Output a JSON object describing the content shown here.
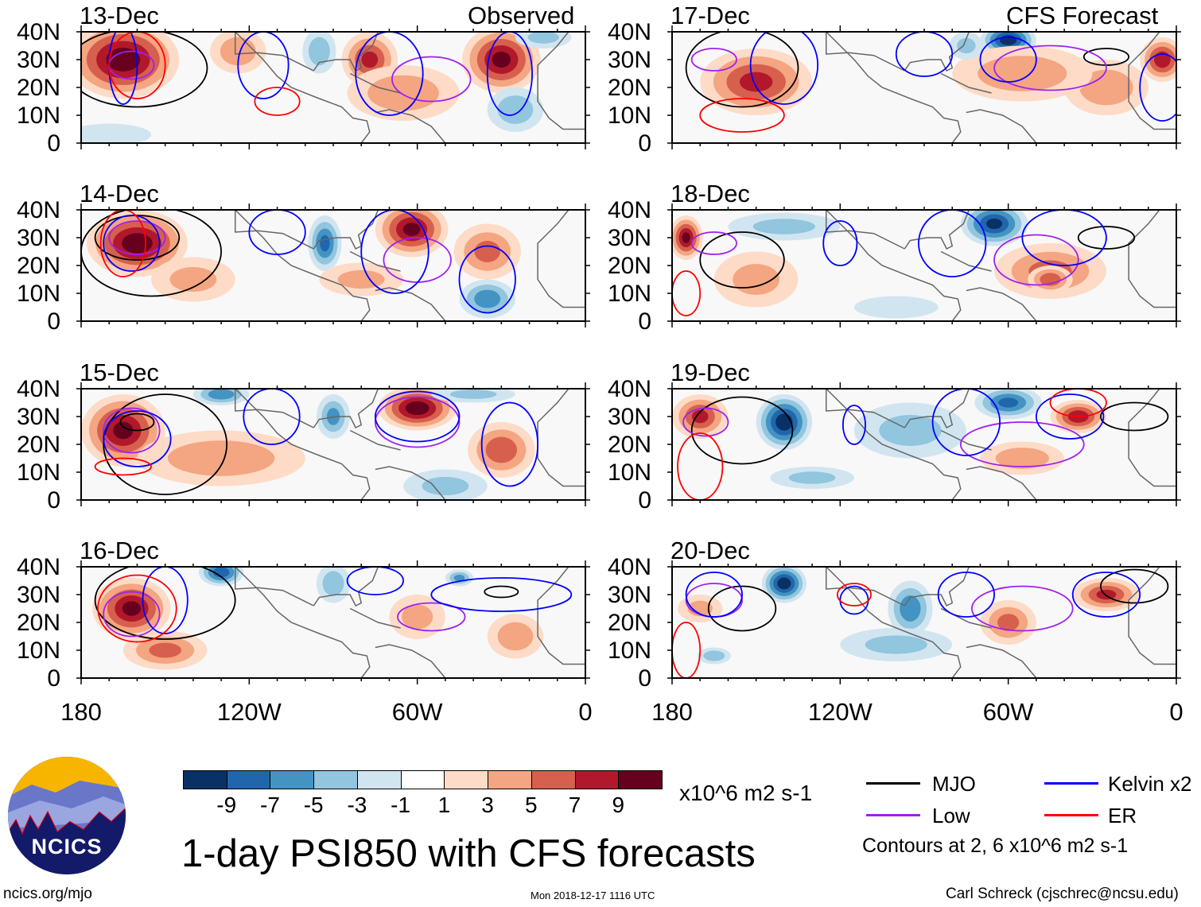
{
  "title": "1-day PSI850 with CFS forecasts",
  "units": "x10^6 m2 s-1",
  "footer": {
    "left": "ncics.org/mjo",
    "center": "Mon 2018-12-17 1116 UTC",
    "right": "Carl Schreck (cjschrec@ncsu.edu)"
  },
  "logo_text": "NCICS",
  "columns": [
    {
      "label": "Observed"
    },
    {
      "label": "CFS Forecast"
    }
  ],
  "lat_labels": [
    "40N",
    "30N",
    "20N",
    "10N",
    "0"
  ],
  "lon_labels": [
    "180",
    "120W",
    "60W",
    "0"
  ],
  "colorbar": {
    "labels": [
      "-9",
      "-7",
      "-5",
      "-3",
      "-1",
      "1",
      "3",
      "5",
      "7",
      "9"
    ],
    "colors": [
      "#0a3166",
      "#2166ac",
      "#4393c3",
      "#92c5de",
      "#d1e5f0",
      "#ffffff",
      "#fddbc7",
      "#f4a582",
      "#d6604d",
      "#b2182b",
      "#67001f"
    ]
  },
  "legend": {
    "items": [
      {
        "label": "MJO",
        "color": "#000000"
      },
      {
        "label": "Kelvin x2",
        "color": "#0000ff"
      },
      {
        "label": "Low",
        "color": "#a020f0"
      },
      {
        "label": "ER",
        "color": "#ff0000"
      }
    ],
    "note": "Contours at 2, 6 x10^6 m2 s-1"
  },
  "chart_data": {
    "type": "heatmap",
    "description_units": "streamfunction anomaly x10^6 m2 s-1",
    "xlim_lon_west": [
      180,
      0
    ],
    "ylim_lat": [
      0,
      40
    ],
    "panels": [
      {
        "date": "13-Dec",
        "col": 0,
        "row": 0,
        "anoms": [
          [
            10,
            165,
            30,
            20,
            14
          ],
          [
            4,
            124,
            33,
            10,
            8
          ],
          [
            -4,
            95,
            33,
            6,
            8
          ],
          [
            7,
            77,
            30,
            10,
            10
          ],
          [
            4,
            65,
            18,
            20,
            10
          ],
          [
            9,
            30,
            30,
            14,
            12
          ],
          [
            -4,
            25,
            12,
            10,
            8
          ],
          [
            -3,
            15,
            38,
            10,
            4
          ],
          [
            -2,
            170,
            3,
            15,
            4
          ]
        ],
        "contours": {
          "mjo": [
            [
              160,
              27,
              25,
              14
            ]
          ],
          "low": [
            [
              162,
              28,
              8,
              5
            ],
            [
              55,
              23,
              14,
              8
            ]
          ],
          "kelvin": [
            [
              165,
              28,
              5,
              14
            ],
            [
              115,
              28,
              9,
              12
            ],
            [
              70,
              25,
              12,
              15
            ],
            [
              27,
              25,
              8,
              15
            ]
          ],
          "er": [
            [
              160,
              28,
              10,
              12
            ],
            [
              110,
              15,
              8,
              5
            ]
          ]
        }
      },
      {
        "date": "14-Dec",
        "col": 0,
        "row": 1,
        "anoms": [
          [
            10,
            160,
            28,
            18,
            12
          ],
          [
            3,
            140,
            15,
            15,
            8
          ],
          [
            9,
            62,
            33,
            13,
            10
          ],
          [
            5,
            35,
            25,
            12,
            10
          ],
          [
            -7,
            93,
            28,
            6,
            10
          ],
          [
            -6,
            35,
            8,
            10,
            7
          ],
          [
            3,
            80,
            15,
            15,
            6
          ]
        ],
        "contours": {
          "mjo": [
            [
              160,
              30,
              15,
              8
            ],
            [
              155,
              25,
              25,
              16
            ]
          ],
          "low": [
            [
              160,
              30,
              10,
              6
            ],
            [
              60,
              22,
              12,
              8
            ]
          ],
          "kelvin": [
            [
              162,
              28,
              10,
              10
            ],
            [
              110,
              32,
              10,
              8
            ],
            [
              68,
              25,
              12,
              15
            ],
            [
              35,
              15,
              10,
              12
            ]
          ],
          "er": [
            [
              165,
              28,
              8,
              12
            ]
          ]
        }
      },
      {
        "date": "15-Dec",
        "col": 0,
        "row": 2,
        "anoms": [
          [
            9,
            165,
            25,
            15,
            13
          ],
          [
            10,
            60,
            33,
            14,
            8
          ],
          [
            -6,
            130,
            38,
            10,
            4
          ],
          [
            -5,
            90,
            30,
            6,
            8
          ],
          [
            6,
            30,
            18,
            12,
            10
          ],
          [
            4,
            130,
            15,
            30,
            10
          ],
          [
            -3,
            50,
            5,
            15,
            6
          ],
          [
            -3,
            40,
            38,
            15,
            3
          ]
        ],
        "contours": {
          "mjo": [
            [
              160,
              28,
              6,
              3
            ],
            [
              150,
              20,
              22,
              18
            ]
          ],
          "low": [
            [
              162,
              25,
              10,
              8
            ],
            [
              60,
              28,
              15,
              9
            ]
          ],
          "kelvin": [
            [
              160,
              22,
              12,
              10
            ],
            [
              112,
              30,
              10,
              10
            ],
            [
              60,
              30,
              15,
              9
            ],
            [
              27,
              20,
              10,
              15
            ]
          ],
          "er": [
            [
              165,
              12,
              10,
              3
            ]
          ]
        }
      },
      {
        "date": "16-Dec",
        "col": 0,
        "row": 3,
        "anoms": [
          [
            9,
            162,
            25,
            14,
            11
          ],
          [
            5,
            150,
            10,
            15,
            7
          ],
          [
            -8,
            130,
            38,
            8,
            5
          ],
          [
            -4,
            90,
            34,
            6,
            7
          ],
          [
            3,
            60,
            22,
            10,
            8
          ],
          [
            4,
            25,
            15,
            10,
            8
          ],
          [
            -5,
            45,
            36,
            5,
            3
          ]
        ],
        "contours": {
          "mjo": [
            [
              150,
              28,
              25,
              14
            ],
            [
              30,
              31,
              6,
              2
            ]
          ],
          "low": [
            [
              162,
              23,
              10,
              8
            ],
            [
              55,
              22,
              12,
              5
            ]
          ],
          "kelvin": [
            [
              150,
              28,
              8,
              12
            ],
            [
              75,
              35,
              10,
              5
            ],
            [
              30,
              30,
              25,
              6
            ]
          ],
          "er": [
            [
              160,
              25,
              14,
              12
            ]
          ]
        }
      },
      {
        "date": "17-Dec",
        "col": 1,
        "row": 0,
        "anoms": [
          [
            7,
            150,
            22,
            20,
            12
          ],
          [
            -10,
            60,
            37,
            10,
            6
          ],
          [
            4,
            25,
            20,
            15,
            10
          ],
          [
            4,
            55,
            25,
            25,
            10
          ],
          [
            8,
            5,
            30,
            8,
            8
          ],
          [
            -3,
            75,
            35,
            6,
            5
          ]
        ],
        "contours": {
          "mjo": [
            [
              155,
              27,
              20,
              14
            ],
            [
              25,
              31,
              8,
              3
            ]
          ],
          "low": [
            [
              165,
              30,
              8,
              4
            ],
            [
              45,
              27,
              20,
              8
            ]
          ],
          "kelvin": [
            [
              140,
              28,
              12,
              14
            ],
            [
              90,
              32,
              10,
              8
            ],
            [
              60,
              30,
              10,
              8
            ],
            [
              5,
              20,
              8,
              12
            ]
          ],
          "er": [
            [
              155,
              10,
              15,
              6
            ]
          ]
        }
      },
      {
        "date": "18-Dec",
        "col": 1,
        "row": 1,
        "anoms": [
          [
            9,
            175,
            30,
            6,
            8
          ],
          [
            -9,
            65,
            35,
            12,
            8
          ],
          [
            -3,
            140,
            34,
            20,
            5
          ],
          [
            5,
            45,
            18,
            20,
            10
          ],
          [
            6,
            45,
            15,
            8,
            5
          ],
          [
            3,
            150,
            15,
            15,
            10
          ],
          [
            -2,
            100,
            5,
            15,
            4
          ]
        ],
        "contours": {
          "mjo": [
            [
              155,
              22,
              15,
              10
            ],
            [
              25,
              30,
              10,
              4
            ]
          ],
          "low": [
            [
              165,
              28,
              8,
              4
            ],
            [
              50,
              22,
              15,
              9
            ]
          ],
          "kelvin": [
            [
              120,
              28,
              6,
              8
            ],
            [
              80,
              28,
              12,
              12
            ],
            [
              40,
              30,
              15,
              10
            ]
          ],
          "er": [
            [
              175,
              10,
              5,
              8
            ]
          ]
        }
      },
      {
        "date": "19-Dec",
        "col": 1,
        "row": 2,
        "anoms": [
          [
            7,
            170,
            30,
            10,
            8
          ],
          [
            -10,
            140,
            28,
            10,
            10
          ],
          [
            -7,
            60,
            35,
            12,
            6
          ],
          [
            8,
            35,
            30,
            10,
            6
          ],
          [
            4,
            55,
            15,
            15,
            6
          ],
          [
            -3,
            95,
            25,
            20,
            10
          ],
          [
            -3,
            130,
            8,
            15,
            4
          ]
        ],
        "contours": {
          "mjo": [
            [
              155,
              25,
              18,
              12
            ],
            [
              15,
              30,
              12,
              5
            ]
          ],
          "low": [
            [
              168,
              28,
              8,
              5
            ],
            [
              55,
              20,
              22,
              8
            ]
          ],
          "kelvin": [
            [
              115,
              27,
              4,
              7
            ],
            [
              75,
              28,
              12,
              12
            ],
            [
              38,
              30,
              12,
              8
            ]
          ],
          "er": [
            [
              170,
              12,
              8,
              12
            ],
            [
              35,
              35,
              10,
              5
            ]
          ]
        }
      },
      {
        "date": "20-Dec",
        "col": 1,
        "row": 3,
        "anoms": [
          [
            -10,
            140,
            34,
            8,
            7
          ],
          [
            -6,
            95,
            25,
            8,
            10
          ],
          [
            -4,
            165,
            8,
            6,
            3
          ],
          [
            5,
            60,
            20,
            10,
            8
          ],
          [
            7,
            25,
            30,
            12,
            6
          ],
          [
            3,
            170,
            25,
            8,
            5
          ],
          [
            -3,
            100,
            12,
            20,
            6
          ]
        ],
        "contours": {
          "mjo": [
            [
              155,
              25,
              12,
              8
            ],
            [
              15,
              33,
              12,
              6
            ]
          ],
          "low": [
            [
              165,
              28,
              10,
              6
            ],
            [
              55,
              25,
              18,
              8
            ]
          ],
          "kelvin": [
            [
              165,
              30,
              10,
              8
            ],
            [
              115,
              28,
              5,
              5
            ],
            [
              75,
              30,
              10,
              8
            ],
            [
              25,
              30,
              12,
              8
            ]
          ],
          "er": [
            [
              175,
              10,
              5,
              10
            ],
            [
              115,
              30,
              6,
              4
            ]
          ]
        }
      }
    ]
  }
}
